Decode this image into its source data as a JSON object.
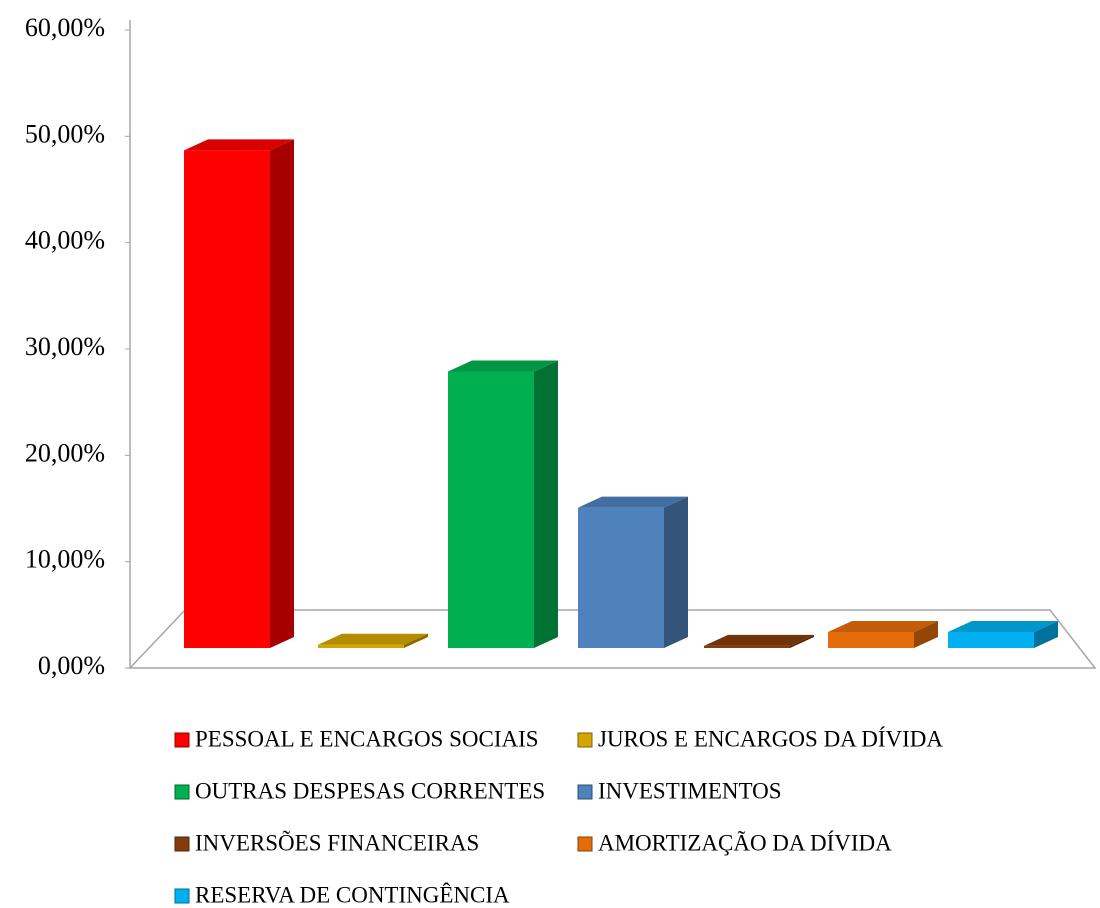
{
  "chart_data": {
    "type": "bar3d",
    "series": [
      {
        "name": "PESSOAL E ENCARGOS SOCIAIS",
        "color": "#ff0000",
        "values": [
          46.8
        ]
      },
      {
        "name": "JUROS E ENCARGOS DA DÍVIDA",
        "color": "#d4a500",
        "values": [
          0.3
        ]
      },
      {
        "name": "OUTRAS DESPESAS CORRENTES",
        "color": "#00b050",
        "values": [
          26
        ]
      },
      {
        "name": "INVESTIMENTOS",
        "color": "#4f81bd",
        "values": [
          13.2
        ]
      },
      {
        "name": "INVERSÕES FINANCEIRAS",
        "color": "#843c0c",
        "values": [
          0.2
        ]
      },
      {
        "name": "AMORTIZAÇÃO DA DÍVIDA",
        "color": "#e46c0a",
        "values": [
          1.5
        ]
      },
      {
        "name": "RESERVA DE CONTINGÊNCIA",
        "color": "#00b0f0",
        "values": [
          1.5
        ]
      }
    ],
    "ylim": [
      0,
      60
    ],
    "yticks": [
      {
        "value": 0,
        "label": "0,00%"
      },
      {
        "value": 10,
        "label": "10,00%"
      },
      {
        "value": 20,
        "label": "20,00%"
      },
      {
        "value": 30,
        "label": "30,00%"
      },
      {
        "value": 40,
        "label": "40,00%"
      },
      {
        "value": 50,
        "label": "50,00%"
      },
      {
        "value": 60,
        "label": "60,00%"
      }
    ]
  }
}
